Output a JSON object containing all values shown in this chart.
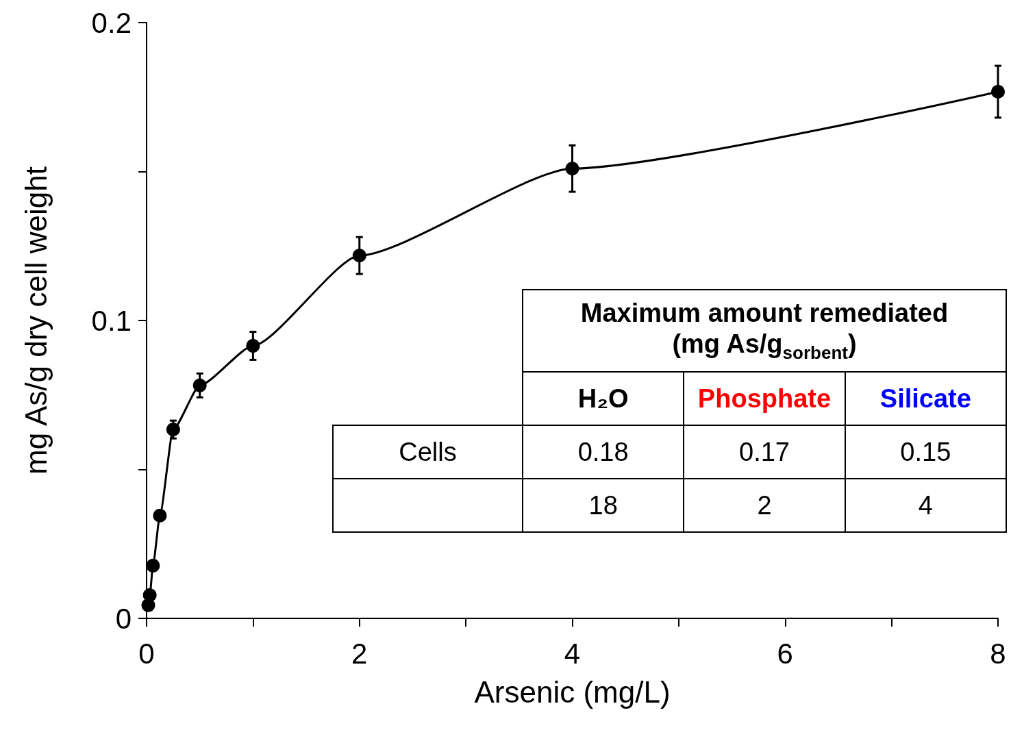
{
  "chart_data": {
    "type": "line",
    "xlabel": "Arsenic (mg/L)",
    "ylabel": "mg As/g dry cell weight",
    "x": [
      0.016,
      0.03,
      0.06,
      0.125,
      0.25,
      0.5,
      1,
      2,
      4,
      8
    ],
    "series": [
      {
        "color": "#000000",
        "values": [
          0.0044,
          0.0078,
          0.0177,
          0.0345,
          0.0634,
          0.0782,
          0.0915,
          0.1218,
          0.151,
          0.1768
        ],
        "errors": [
          null,
          null,
          null,
          null,
          0.003,
          0.004,
          0.0047,
          0.0062,
          0.0078,
          0.0087
        ]
      }
    ],
    "xlim": [
      0,
      8
    ],
    "xticks": [
      0,
      {
        "value": 1,
        "label": null
      },
      2,
      {
        "value": 3,
        "label": null
      },
      4,
      {
        "value": 5,
        "label": null
      },
      6,
      {
        "value": 7,
        "label": null
      },
      8
    ],
    "ylim": [
      0,
      0.2
    ],
    "yticks": [
      0,
      {
        "value": 0.05,
        "label": null
      },
      0.1,
      {
        "value": 0.15,
        "label": null
      },
      0.2
    ],
    "grid": false,
    "marker": "circle",
    "line_style": "solid",
    "annotations": [
      "Maximum amount remediated (mg As/g$_{sorbent}$)",
      "H₂O",
      "Phosphate",
      "Silicate",
      "Cells",
      "0.18",
      "0.17",
      "0.15",
      "18",
      "2",
      "4"
    ]
  }
}
